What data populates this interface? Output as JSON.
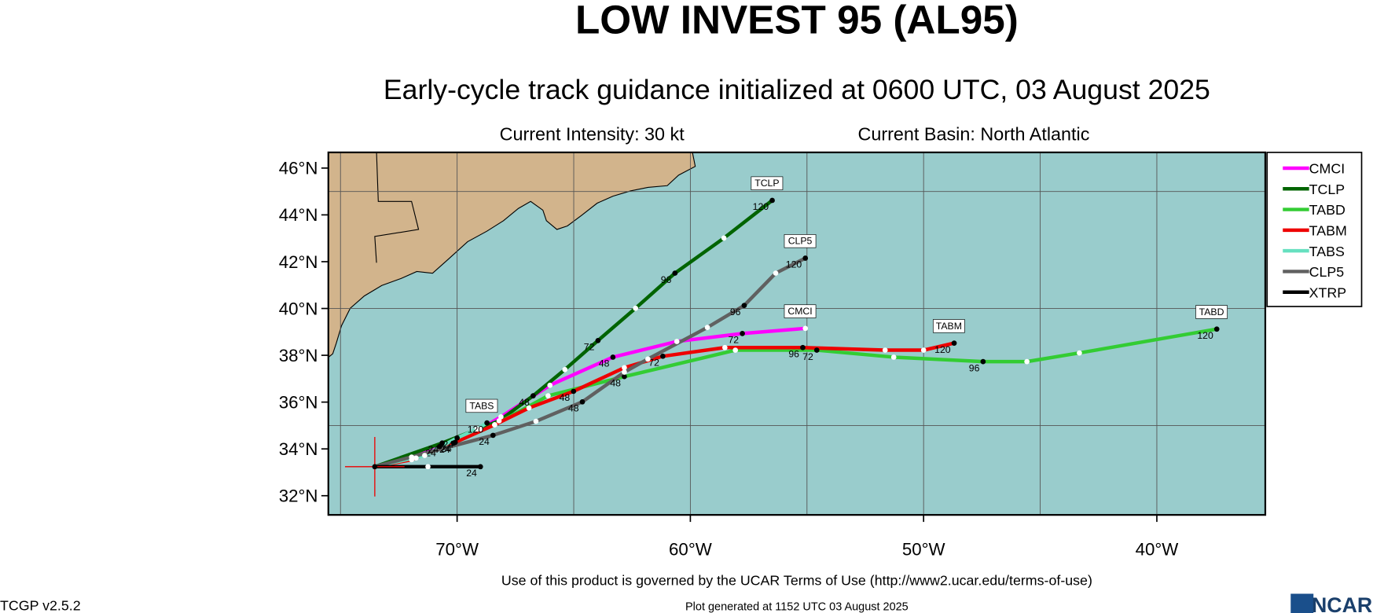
{
  "chart_data": {
    "type": "line",
    "title": "LOW INVEST 95 (AL95)",
    "subtitle": "Early-cycle track guidance initialized at 0600 UTC, 03 August 2025",
    "intensity": "Current Intensity: 30 kt",
    "basin": "Current Basin: North Atlantic",
    "terms": "Use of this product is governed by the UCAR Terms of Use (http://www2.ucar.edu/terms-of-use)",
    "version": "TCGP v2.5.2",
    "generated": "Plot generated at 1152 UTC   03 August 2025",
    "logo": "NCAR",
    "xlim": [
      -75.52,
      -35.35
    ],
    "ylim": [
      31.18,
      46.67
    ],
    "xticks": [
      {
        "value": -70,
        "label": "70°W"
      },
      {
        "value": -60,
        "label": "60°W"
      },
      {
        "value": -50,
        "label": "50°W"
      },
      {
        "value": -40,
        "label": "40°W"
      }
    ],
    "yticks": [
      {
        "value": 32,
        "label": "32°N"
      },
      {
        "value": 34,
        "label": "34°N"
      },
      {
        "value": 36,
        "label": "36°N"
      },
      {
        "value": 38,
        "label": "38°N"
      },
      {
        "value": 40,
        "label": "40°N"
      },
      {
        "value": 42,
        "label": "42°N"
      },
      {
        "value": 44,
        "label": "44°N"
      },
      {
        "value": 46,
        "label": "46°N"
      }
    ],
    "grid_lon": [
      -75,
      -70,
      -65,
      -60,
      -55,
      -50,
      -45,
      -40
    ],
    "grid_lat": [
      35,
      40,
      45
    ],
    "current_position": [
      -73.53,
      33.24
    ],
    "series": [
      {
        "name": "CMCI",
        "color": "#ff00ff",
        "label_box": true,
        "x": [
          -73.53,
          -71.95,
          -70.75,
          -69.02,
          -68.12,
          -66.02,
          -63.32,
          -60.58,
          -57.77,
          -55.07
        ],
        "values": [
          33.24,
          33.65,
          34.1,
          34.85,
          35.37,
          36.72,
          37.92,
          38.59,
          38.93,
          39.15
        ],
        "hour_labels": [
          null,
          null,
          24,
          null,
          null,
          null,
          48,
          null,
          72,
          null
        ]
      },
      {
        "name": "TCLP",
        "color": "#006400",
        "label_box": true,
        "x": [
          -73.53,
          -70.64,
          -68.2,
          -66.74,
          -65.38,
          -63.96,
          -62.35,
          -60.66,
          -58.56,
          -56.49
        ],
        "values": [
          33.24,
          34.25,
          35.2,
          36.27,
          37.39,
          38.63,
          40.01,
          41.51,
          43.01,
          44.62
        ],
        "hour_labels": [
          null,
          24,
          null,
          48,
          null,
          72,
          null,
          96,
          null,
          120
        ]
      },
      {
        "name": "TABD",
        "color": "#33cc33",
        "label_box": true,
        "x": [
          -73.53,
          -71.76,
          -70.15,
          -68.39,
          -66.1,
          -62.83,
          -58.07,
          -54.58,
          -51.28,
          -47.45,
          -45.57,
          -43.32,
          -37.43
        ],
        "values": [
          33.24,
          33.61,
          34.25,
          35.03,
          36.27,
          37.09,
          38.22,
          38.22,
          37.92,
          37.73,
          37.73,
          38.1,
          39.12
        ],
        "hour_labels": [
          null,
          null,
          24,
          null,
          null,
          48,
          null,
          72,
          null,
          96,
          null,
          null,
          120
        ]
      },
      {
        "name": "TABM",
        "color": "#ee0000",
        "label_box": true,
        "x": [
          -73.53,
          -71.95,
          -70.08,
          -68.39,
          -66.92,
          -65.01,
          -62.83,
          -61.18,
          -58.52,
          -55.18,
          -51.65,
          -50.0,
          -48.69
        ],
        "values": [
          33.24,
          33.54,
          34.28,
          35.03,
          35.75,
          36.46,
          37.47,
          37.96,
          38.33,
          38.33,
          38.22,
          38.22,
          38.52
        ],
        "hour_labels": [
          null,
          null,
          24,
          null,
          null,
          48,
          null,
          72,
          null,
          96,
          null,
          null,
          120
        ]
      },
      {
        "name": "TABS",
        "color": "#66e0c0",
        "label_box": true,
        "x": [
          -73.53,
          -71.39,
          -70.0,
          -69.14,
          -68.72
        ],
        "values": [
          33.24,
          33.72,
          34.47,
          34.85,
          35.11
        ],
        "hour_labels": [
          null,
          null,
          24,
          null,
          120
        ]
      },
      {
        "name": "CLP5",
        "color": "#606060",
        "label_box": true,
        "x": [
          -73.53,
          -68.46,
          -66.62,
          -64.63,
          -62.83,
          -61.82,
          -59.27,
          -57.69,
          -56.34,
          -55.07
        ],
        "values": [
          33.24,
          34.58,
          35.18,
          36.01,
          37.28,
          37.84,
          39.19,
          40.13,
          41.51,
          42.15
        ],
        "hour_labels": [
          null,
          24,
          null,
          48,
          null,
          null,
          null,
          96,
          null,
          120
        ]
      },
      {
        "name": "XTRP",
        "color": "#000000",
        "label_box": false,
        "x": [
          -73.53,
          -71.25,
          -69.0
        ],
        "values": [
          33.24,
          33.24,
          33.24
        ],
        "hour_labels": [
          null,
          null,
          24
        ]
      }
    ]
  }
}
